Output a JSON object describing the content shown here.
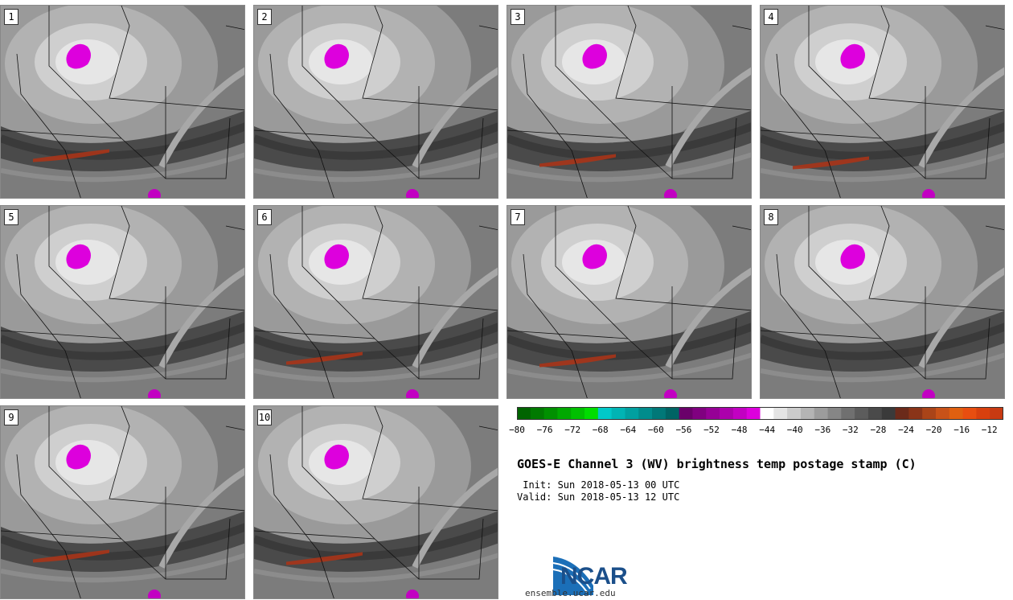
{
  "title": "GOES-E Channel 3 (WV) brightness temp postage stamp (C)",
  "init_line": " Init: Sun 2018-05-13 00 UTC",
  "valid_line": "Valid: Sun 2018-05-13 12 UTC",
  "logo_text": "NCAR",
  "url": "ensemble.ucar.edu",
  "panels": [
    "1",
    "2",
    "3",
    "4",
    "5",
    "6",
    "7",
    "8",
    "9",
    "10"
  ],
  "colorbar": {
    "min": -80,
    "max": -10,
    "ticks": [
      "-80",
      "-76",
      "-72",
      "-68",
      "-64",
      "-60",
      "-56",
      "-52",
      "-48",
      "-44",
      "-40",
      "-36",
      "-32",
      "-28",
      "-24",
      "-20",
      "-16",
      "-12"
    ],
    "colors": [
      "#006400",
      "#007a00",
      "#009000",
      "#00a800",
      "#00c000",
      "#00dd00",
      "#00c8c8",
      "#00b4b4",
      "#00a0a0",
      "#008c8c",
      "#007878",
      "#006464",
      "#6a006a",
      "#800080",
      "#960096",
      "#ac00ac",
      "#c200c2",
      "#dd00dd",
      "#ffffff",
      "#e4e4e4",
      "#cccccc",
      "#b4b4b4",
      "#9c9c9c",
      "#868686",
      "#707070",
      "#5c5c5c",
      "#4a4a4a",
      "#3a3a3a",
      "#6b2a1a",
      "#8a3418",
      "#aa4418",
      "#c85218",
      "#e06010",
      "#e84e10",
      "#d8400e",
      "#c83a12"
    ]
  }
}
